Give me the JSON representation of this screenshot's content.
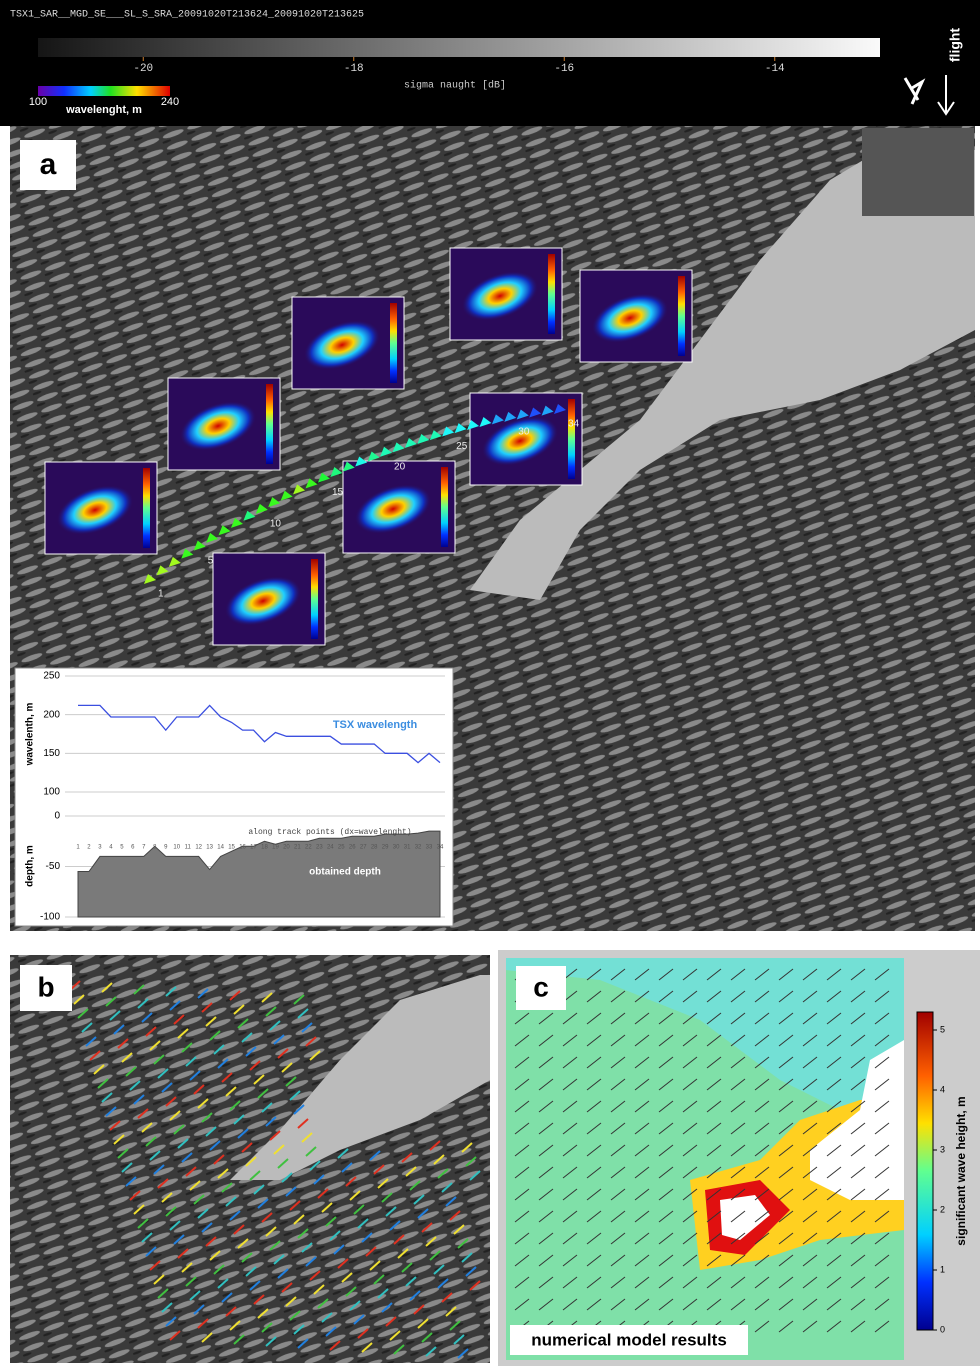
{
  "header": {
    "title": "TSX1_SAR__MGD_SE___SL_S_SRA_20091020T213624_20091020T213625",
    "sigma_scale": {
      "label": "sigma naught [dB]",
      "xlim": [
        -21,
        -13
      ],
      "xticks": [
        -20,
        -18,
        -16,
        -14
      ]
    },
    "wavelength_scale": {
      "label": "wavelenght, m",
      "lim": [
        100,
        240
      ],
      "ticks": [
        100,
        240
      ]
    },
    "flight": "flight"
  },
  "panels": {
    "a": "a",
    "b": "b",
    "c": "c"
  },
  "track_labels": [
    "1",
    "5",
    "10",
    "15",
    "20",
    "25",
    "30",
    "34"
  ],
  "chart_data": [
    {
      "type": "line",
      "y_label": "wavelenth, m",
      "series": [
        {
          "name": "TSX wavelength",
          "color": "#3b4fe0",
          "values": [
            212,
            212,
            212,
            197,
            197,
            197,
            197,
            197,
            180,
            197,
            197,
            197,
            212,
            197,
            190,
            180,
            180,
            165,
            177,
            172,
            172,
            172,
            172,
            172,
            162,
            162,
            162,
            162,
            150,
            150,
            150,
            138,
            150,
            138
          ]
        }
      ],
      "ylim": [
        100,
        250
      ],
      "yticks": [
        250,
        200,
        150,
        100
      ],
      "grid": true
    },
    {
      "type": "area",
      "y_label": "depth, m",
      "x_label": "along track points (dx=wavelenght)",
      "x": [
        1,
        2,
        3,
        4,
        5,
        6,
        7,
        8,
        9,
        10,
        11,
        12,
        13,
        14,
        15,
        16,
        17,
        18,
        19,
        20,
        21,
        22,
        23,
        24,
        25,
        26,
        27,
        28,
        29,
        30,
        31,
        32,
        33,
        34
      ],
      "series": [
        {
          "name": "obtained depth",
          "color": "#7a7a7a",
          "values": [
            -55,
            -55,
            -40,
            -40,
            -40,
            -40,
            -40,
            -30,
            -40,
            -40,
            -40,
            -40,
            -53,
            -40,
            -35,
            -30,
            -30,
            -25,
            -28,
            -25,
            -25,
            -25,
            -22,
            -22,
            -22,
            -20,
            -20,
            -20,
            -18,
            -18,
            -18,
            -17,
            -15,
            -15
          ]
        }
      ],
      "xlim": [
        1,
        34
      ],
      "ylim": [
        -100,
        0
      ],
      "yticks": [
        0,
        -50,
        -100
      ],
      "grid": true
    },
    {
      "type": "colorbar",
      "label": "significant wave height, m",
      "ylim": [
        0,
        5.3
      ],
      "yticks": [
        0,
        1,
        2,
        3,
        4,
        5
      ],
      "note": "numerical model results"
    }
  ]
}
